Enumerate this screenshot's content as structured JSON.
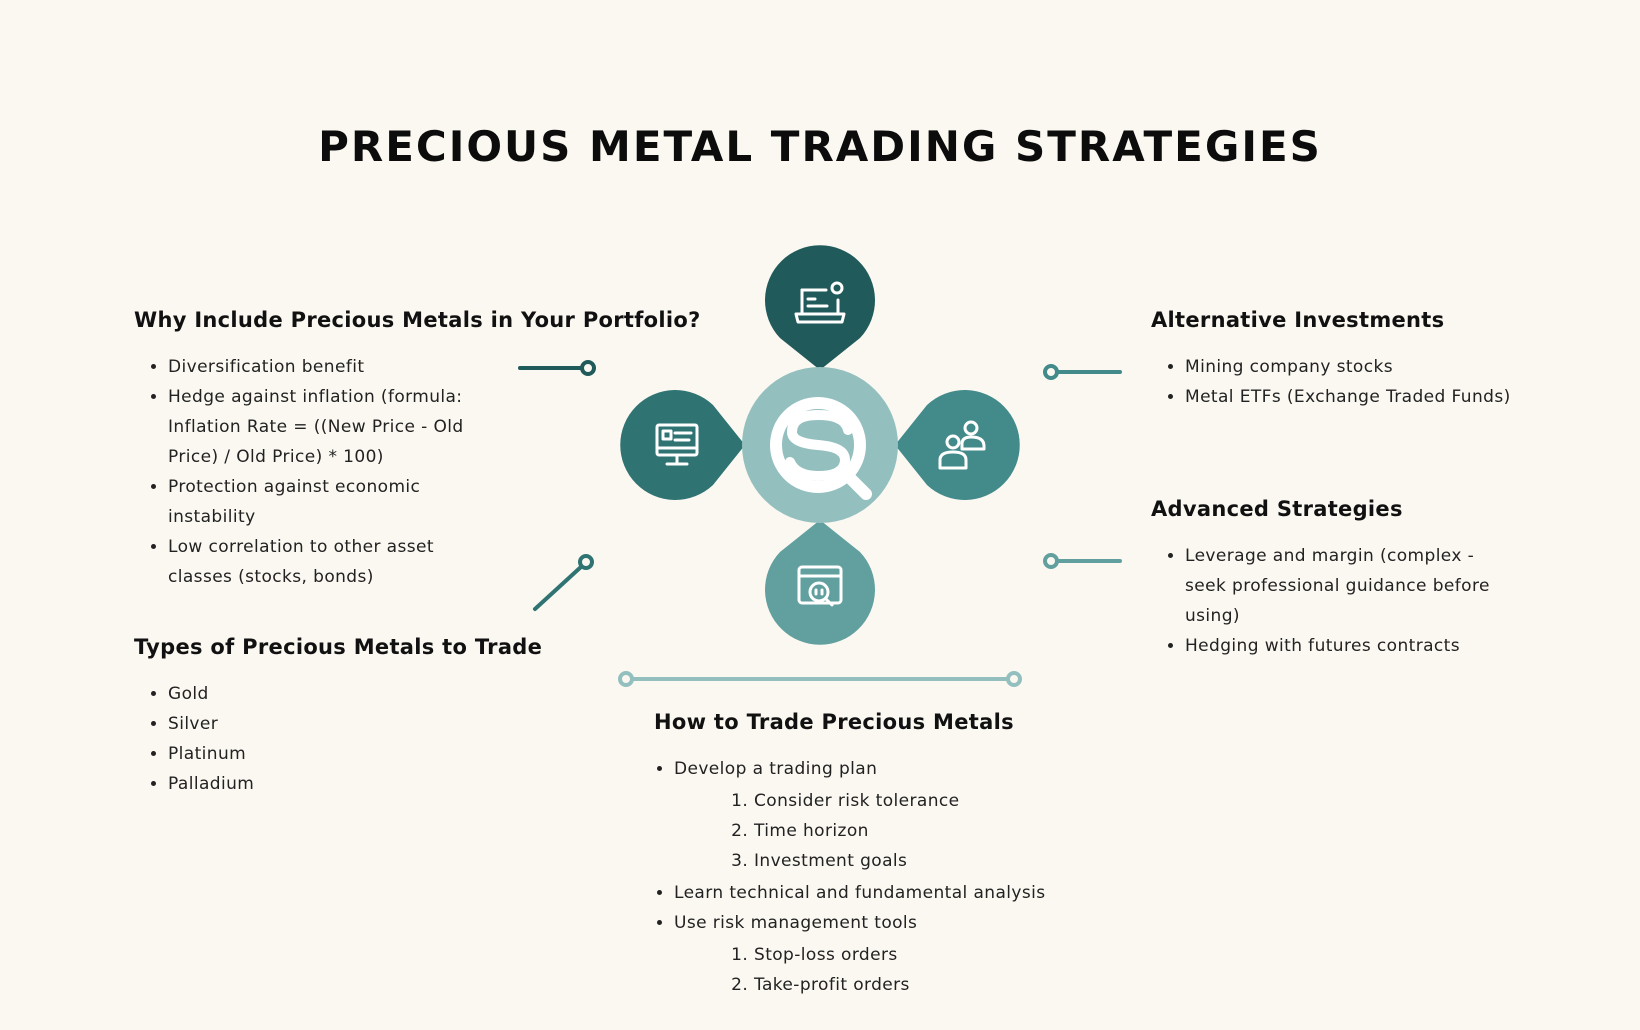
{
  "title": "PRECIOUS METAL TRADING STRATEGIES",
  "colors": {
    "background": "#faf8f1",
    "teal_dark": "#215a5a",
    "teal_mid": "#2f7373",
    "teal_light": "#438a8a",
    "teal_pale": "#62a0a0",
    "center_circle": "#94bfbf"
  },
  "sections": {
    "why": {
      "heading": "Why Include Precious Metals in Your Portfolio?",
      "items": [
        "Diversification benefit",
        "Hedge against inflation (formula: Inflation Rate = ((New Price - Old Price) / Old Price) * 100)",
        "Protection against economic instability",
        "Low correlation to other asset classes (stocks, bonds)"
      ]
    },
    "types": {
      "heading": "Types of Precious Metals to Trade",
      "items": [
        "Gold",
        "Silver",
        "Platinum",
        "Palladium"
      ]
    },
    "how": {
      "heading": "How to Trade Precious Metals",
      "items": [
        {
          "text": "Develop a trading plan",
          "sub": [
            "Consider risk tolerance",
            "Time horizon",
            "Investment goals"
          ]
        },
        {
          "text": "Learn technical and fundamental analysis",
          "sub": []
        },
        {
          "text": "Use risk management tools",
          "sub": [
            "Stop-loss orders",
            "Take-profit orders"
          ]
        }
      ]
    },
    "alt": {
      "heading": "Alternative Investments",
      "items": [
        "Mining company stocks",
        "Metal ETFs (Exchange Traded Funds)"
      ]
    },
    "adv": {
      "heading": "Advanced Strategies",
      "items": [
        "Leverage and margin (complex - seek professional guidance before using)",
        "Hedging with futures contracts"
      ]
    }
  },
  "icons": {
    "top": "laptop-profile-icon",
    "left": "monitor-dashboard-icon",
    "right": "users-icon",
    "bottom": "browser-search-icon",
    "center": "logo-icon"
  }
}
